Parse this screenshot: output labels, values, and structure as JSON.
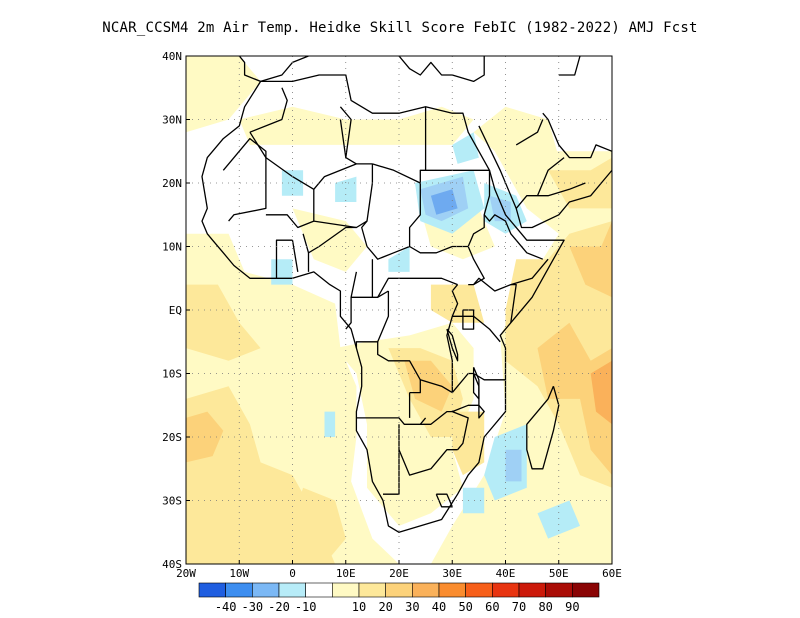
{
  "title": "NCAR_CCSM4  2m Air Temp. Heidke Skill Score FebIC (1982-2022) AMJ Fcst",
  "map": {
    "lon_range": [
      -20,
      60
    ],
    "lat_range": [
      -40,
      40
    ],
    "x_ticks": [
      "20W",
      "10W",
      "0",
      "10E",
      "20E",
      "30E",
      "40E",
      "50E",
      "60E"
    ],
    "y_ticks": [
      "40N",
      "30N",
      "20N",
      "10N",
      "EQ",
      "10S",
      "20S",
      "30S",
      "40S"
    ],
    "grid": "dotted",
    "fill_colors": {
      "pos10": "#fffac4",
      "pos20": "#fde89a",
      "pos30": "#fcd27a",
      "pos40": "#fab15a",
      "neg10": "#b5ecf7",
      "neg20": "#9fd0f5",
      "neg30": "#6eaaf0"
    }
  },
  "colorbar": {
    "colors": [
      "#1f5ee0",
      "#3d8ef0",
      "#7bb8f5",
      "#b7ecf8",
      "#ffffff",
      "#fffac4",
      "#fde89a",
      "#fcd27a",
      "#fab15a",
      "#fa8c2e",
      "#f75f19",
      "#e83410",
      "#cc1a0a",
      "#aa0c06",
      "#8a0404"
    ],
    "labels": [
      "-40",
      "-30",
      "-20",
      "-10",
      "10",
      "20",
      "30",
      "40",
      "50",
      "60",
      "70",
      "80",
      "90"
    ]
  }
}
